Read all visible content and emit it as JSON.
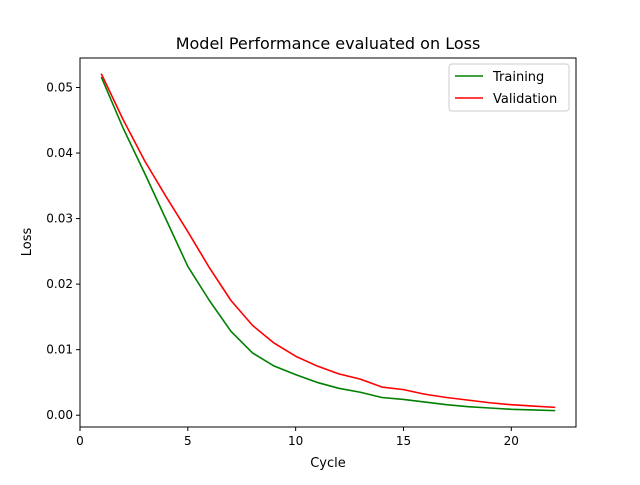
{
  "chart_data": {
    "type": "line",
    "title": "Model Performance evaluated on Loss",
    "xlabel": "Cycle",
    "ylabel": "Loss",
    "xlim": [
      0,
      23
    ],
    "ylim": [
      -0.0018,
      0.0545
    ],
    "xticks": [
      0,
      5,
      10,
      15,
      20
    ],
    "xtick_labels": [
      "0",
      "5",
      "10",
      "15",
      "20"
    ],
    "yticks": [
      0.0,
      0.01,
      0.02,
      0.03,
      0.04,
      0.05
    ],
    "ytick_labels": [
      "0.00",
      "0.01",
      "0.02",
      "0.03",
      "0.04",
      "0.05"
    ],
    "grid": false,
    "legend_position": "top-right",
    "x": [
      1,
      2,
      3,
      4,
      5,
      6,
      7,
      8,
      9,
      10,
      11,
      12,
      13,
      14,
      15,
      16,
      17,
      18,
      19,
      20,
      21,
      22
    ],
    "series": [
      {
        "name": "Training",
        "color": "#008000",
        "values": [
          0.0515,
          0.0438,
          0.0369,
          0.0298,
          0.0227,
          0.0175,
          0.0128,
          0.0095,
          0.0075,
          0.0062,
          0.005,
          0.0041,
          0.0035,
          0.0027,
          0.0024,
          0.002,
          0.0016,
          0.0013,
          0.0011,
          0.0009,
          0.0008,
          0.0007
        ]
      },
      {
        "name": "Validation",
        "color": "#ff0000",
        "values": [
          0.052,
          0.0451,
          0.0388,
          0.0333,
          0.028,
          0.0225,
          0.0175,
          0.0137,
          0.011,
          0.009,
          0.0075,
          0.0063,
          0.0055,
          0.0043,
          0.0039,
          0.0032,
          0.0027,
          0.0023,
          0.0019,
          0.0016,
          0.0014,
          0.0012
        ]
      }
    ]
  }
}
